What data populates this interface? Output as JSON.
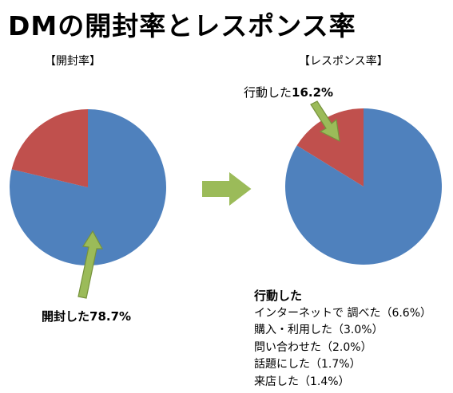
{
  "page": {
    "title": "DMの開封率とレスポンス率"
  },
  "colors": {
    "blue": "#4f81bd",
    "red": "#c0504d",
    "arrow_green": "#9bbb59",
    "arrow_green_dark": "#76923c"
  },
  "chart_data": [
    {
      "type": "pie",
      "label": "【開封率】",
      "slices": [
        {
          "name": "開封した",
          "value": 78.7,
          "color": "#4f81bd"
        },
        {
          "name": "",
          "value": 21.3,
          "color": "#c0504d"
        }
      ],
      "annotation": {
        "name": "開封した",
        "value": "78.7%"
      }
    },
    {
      "type": "pie",
      "label": "【レスポンス率】",
      "slices": [
        {
          "name": "行動した",
          "value": 16.2,
          "color": "#c0504d"
        },
        {
          "name": "",
          "value": 83.8,
          "color": "#4f81bd"
        }
      ],
      "annotation": {
        "name": "行動した",
        "value": "16.2%"
      }
    }
  ],
  "details": {
    "heading": "行動した",
    "items": [
      "インターネットで 調べた（6.6%）",
      "購入・利用した（3.0%）",
      "問い合わせた（2.0%）",
      "話題にした（1.7%）",
      "来店した（1.4%）"
    ]
  }
}
